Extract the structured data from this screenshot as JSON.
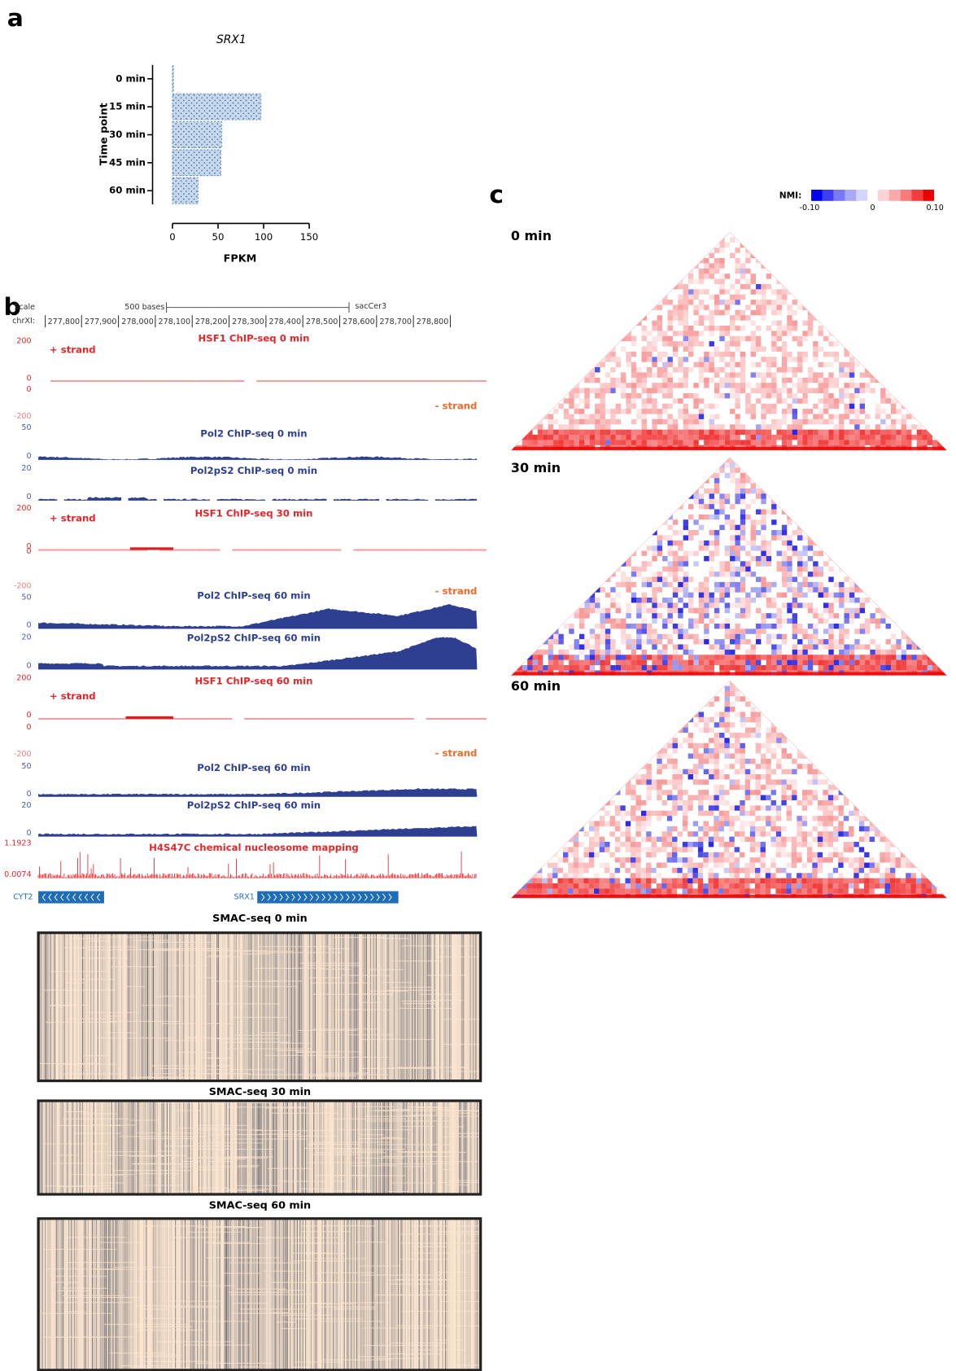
{
  "panel_labels": [
    "a",
    "b",
    "c"
  ],
  "chart_data": {
    "type": "bar",
    "orientation": "horizontal",
    "title": "SRX1",
    "categories": [
      "0 min",
      "15 min",
      "30 min",
      "45 min",
      "60 min"
    ],
    "values": [
      1,
      97,
      54,
      53,
      28
    ],
    "xlim": [
      0,
      150
    ],
    "xticks": [
      0,
      50,
      100,
      150
    ],
    "xlabel": "FPKM",
    "ylabel": "Time point",
    "color": "#c6d9ef",
    "edge_color": "#4a7fc1"
  },
  "browser": {
    "scale": "Scale",
    "scale_bar": "500 bases",
    "assembly": "sacCer3",
    "chrom": "chrXI:",
    "coords": [
      "277,800",
      "277,900",
      "278,000",
      "278,100",
      "278,200",
      "278,300",
      "278,400",
      "278,500",
      "278,600",
      "278,700",
      "278,800"
    ],
    "tracks": [
      {
        "label": "HSF1 ChIP-seq 0 min",
        "color": "#e8262a",
        "axis": [
          "200",
          "0",
          "0",
          "-200"
        ],
        "strands": [
          "+ strand",
          "- strand"
        ]
      },
      {
        "label": "Pol2 ChIP-seq 0 min",
        "color": "#2e3f92",
        "axis": [
          "50",
          "0"
        ]
      },
      {
        "label": "Pol2pS2 ChIP-seq 0 min",
        "color": "#2e3f92",
        "axis": [
          "20",
          "0"
        ]
      },
      {
        "label": "HSF1 ChIP-seq 30 min",
        "color": "#e8262a",
        "axis": [
          "200",
          "0",
          "0",
          "-200"
        ],
        "strands": [
          "+ strand",
          "- strand"
        ]
      },
      {
        "label": "Pol2 ChIP-seq 60 min",
        "color": "#2e3f92",
        "axis": [
          "50",
          "0"
        ]
      },
      {
        "label": "Pol2pS2 ChIP-seq 60 min",
        "color": "#2e3f92",
        "axis": [
          "20",
          "0"
        ]
      },
      {
        "label": "HSF1 ChIP-seq 60 min",
        "color": "#e8262a",
        "axis": [
          "200",
          "0",
          "0",
          "-200"
        ],
        "strands": [
          "+ strand",
          "- strand"
        ]
      },
      {
        "label": "Pol2 ChIP-seq 60 min",
        "color": "#2e3f92",
        "axis": [
          "50",
          "0"
        ]
      },
      {
        "label": "Pol2pS2 ChIP-seq 60 min",
        "color": "#2e3f92",
        "axis": [
          "20",
          "0"
        ]
      },
      {
        "label": "H4S47C chemical nucleosome mapping",
        "color": "#e8262a",
        "axis": [
          "1.1923",
          "0.0074"
        ]
      }
    ],
    "genes": [
      "CYT2",
      "SRX1"
    ]
  },
  "smac": [
    "SMAC-seq 0 min",
    "SMAC-seq 30 min",
    "SMAC-seq 60 min"
  ],
  "heatmaps": {
    "legend_title": "NMI:",
    "legend_ticks": [
      "-0.10",
      "0",
      "0.10"
    ],
    "panels": [
      "0 min",
      "30 min",
      "60 min"
    ]
  }
}
